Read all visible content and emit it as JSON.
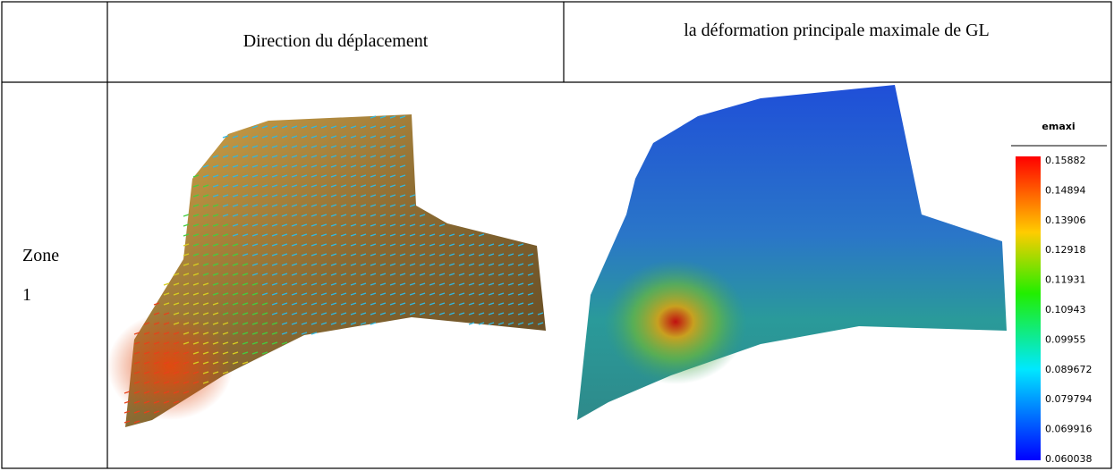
{
  "table": {
    "header": [
      "Direction du déplacement",
      "la déformation principale maximale de GL"
    ],
    "rows": [
      {
        "label": [
          "Zone",
          "1"
        ]
      }
    ]
  },
  "legend": {
    "title": "emaxi",
    "labels": [
      "0.15882",
      "0.14894",
      "0.13906",
      "0.12918",
      "0.11931",
      "0.10943",
      "0.09955",
      "0.089672",
      "0.079794",
      "0.069916",
      "0.060038"
    ]
  }
}
